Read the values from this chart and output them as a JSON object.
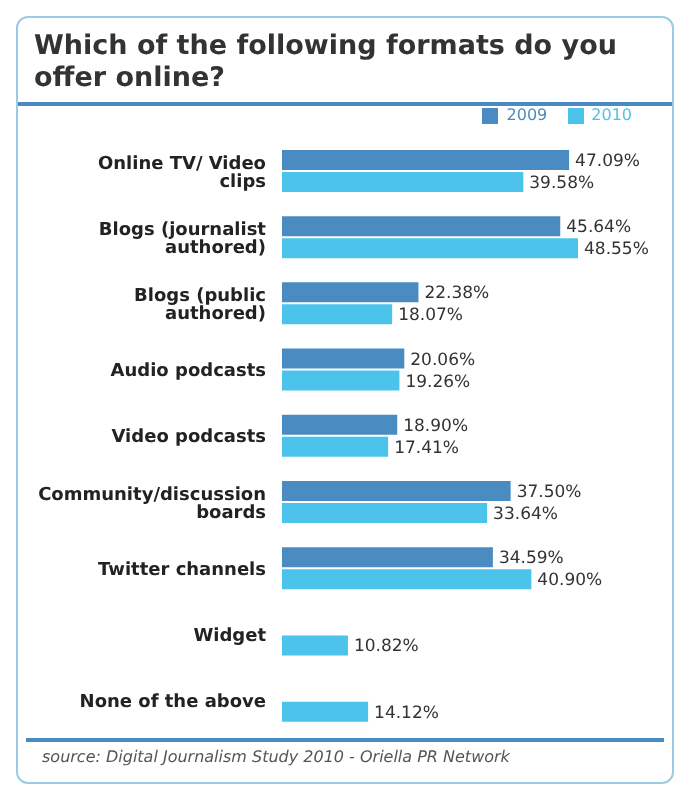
{
  "chart_data": {
    "type": "bar",
    "orientation": "horizontal",
    "title": "Which of the following formats do you offer online?",
    "categories": [
      "Online TV/ Video clips",
      "Blogs (journalist authored)",
      "Blogs (public authored)",
      "Audio podcasts",
      "Video podcasts",
      "Community/discussion boards",
      "Twitter channels",
      "Widget",
      "None of the above"
    ],
    "series": [
      {
        "name": "2009",
        "color": "#4a8cc2",
        "values": [
          47.09,
          45.64,
          22.38,
          20.06,
          18.9,
          37.5,
          34.59,
          null,
          null
        ],
        "value_labels": [
          "47.09%",
          "45.64%",
          "22.38%",
          "20.06%",
          "18.90%",
          "37.50%",
          "34.59%",
          null,
          null
        ]
      },
      {
        "name": "2010",
        "color": "#4cc3ea",
        "values": [
          39.58,
          48.55,
          18.07,
          19.26,
          17.41,
          33.64,
          40.9,
          10.82,
          14.12
        ],
        "value_labels": [
          "39.58%",
          "48.55%",
          "18.07%",
          "19.26%",
          "17.41%",
          "33.64%",
          "40.90%",
          "10.82%",
          "14.12%"
        ]
      }
    ],
    "legend": "top right",
    "tick_labels": "y",
    "annotations": [
      "source: Digital Journalism Study 2010 - Oriella PR Network"
    ]
  }
}
